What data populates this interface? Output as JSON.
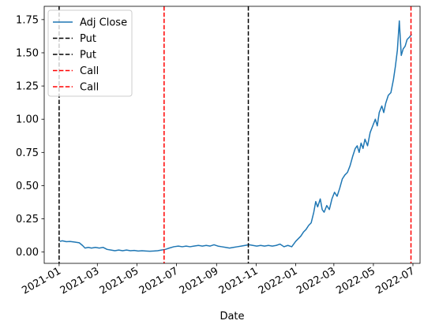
{
  "chart_data": {
    "type": "line",
    "title": "",
    "xlabel": "Date",
    "ylabel": "",
    "xlim": [
      "2020-12-09",
      "2022-07-12"
    ],
    "ylim": [
      -0.085,
      1.85
    ],
    "grid": false,
    "legend_position": "top-left",
    "x_ticks": [
      {
        "date": "2021-01-01",
        "label": "2021-01"
      },
      {
        "date": "2021-03-01",
        "label": "2021-03"
      },
      {
        "date": "2021-05-01",
        "label": "2021-05"
      },
      {
        "date": "2021-07-01",
        "label": "2021-07"
      },
      {
        "date": "2021-09-01",
        "label": "2021-09"
      },
      {
        "date": "2021-11-01",
        "label": "2021-11"
      },
      {
        "date": "2022-01-01",
        "label": "2022-01"
      },
      {
        "date": "2022-03-01",
        "label": "2022-03"
      },
      {
        "date": "2022-05-01",
        "label": "2022-05"
      },
      {
        "date": "2022-07-01",
        "label": "2022-07"
      }
    ],
    "y_ticks": [
      {
        "value": 0.0,
        "label": "0.00"
      },
      {
        "value": 0.25,
        "label": "0.25"
      },
      {
        "value": 0.5,
        "label": "0.50"
      },
      {
        "value": 0.75,
        "label": "0.75"
      },
      {
        "value": 1.0,
        "label": "1.00"
      },
      {
        "value": 1.25,
        "label": "1.25"
      },
      {
        "value": 1.5,
        "label": "1.50"
      },
      {
        "value": 1.75,
        "label": "1.75"
      }
    ],
    "series": [
      {
        "name": "Adj Close",
        "color": "#1f77b4",
        "points": [
          [
            "2021-01-02",
            0.08
          ],
          [
            "2021-01-06",
            0.085
          ],
          [
            "2021-01-12",
            0.078
          ],
          [
            "2021-01-18",
            0.08
          ],
          [
            "2021-01-25",
            0.075
          ],
          [
            "2021-02-01",
            0.07
          ],
          [
            "2021-02-06",
            0.05
          ],
          [
            "2021-02-10",
            0.03
          ],
          [
            "2021-02-15",
            0.035
          ],
          [
            "2021-02-20",
            0.03
          ],
          [
            "2021-02-26",
            0.035
          ],
          [
            "2021-03-04",
            0.03
          ],
          [
            "2021-03-10",
            0.035
          ],
          [
            "2021-03-16",
            0.02
          ],
          [
            "2021-03-22",
            0.015
          ],
          [
            "2021-03-28",
            0.01
          ],
          [
            "2021-04-03",
            0.015
          ],
          [
            "2021-04-09",
            0.01
          ],
          [
            "2021-04-15",
            0.015
          ],
          [
            "2021-04-21",
            0.01
          ],
          [
            "2021-04-27",
            0.012
          ],
          [
            "2021-05-03",
            0.008
          ],
          [
            "2021-05-09",
            0.01
          ],
          [
            "2021-05-15",
            0.008
          ],
          [
            "2021-05-21",
            0.006
          ],
          [
            "2021-05-27",
            0.008
          ],
          [
            "2021-06-02",
            0.01
          ],
          [
            "2021-06-08",
            0.015
          ],
          [
            "2021-06-14",
            0.02
          ],
          [
            "2021-06-20",
            0.03
          ],
          [
            "2021-06-27",
            0.04
          ],
          [
            "2021-07-04",
            0.045
          ],
          [
            "2021-07-10",
            0.04
          ],
          [
            "2021-07-16",
            0.045
          ],
          [
            "2021-07-22",
            0.04
          ],
          [
            "2021-07-28",
            0.045
          ],
          [
            "2021-08-04",
            0.05
          ],
          [
            "2021-08-10",
            0.045
          ],
          [
            "2021-08-16",
            0.05
          ],
          [
            "2021-08-22",
            0.045
          ],
          [
            "2021-08-28",
            0.055
          ],
          [
            "2021-09-03",
            0.045
          ],
          [
            "2021-09-09",
            0.04
          ],
          [
            "2021-09-15",
            0.035
          ],
          [
            "2021-09-21",
            0.03
          ],
          [
            "2021-09-27",
            0.035
          ],
          [
            "2021-10-03",
            0.04
          ],
          [
            "2021-10-09",
            0.045
          ],
          [
            "2021-10-15",
            0.05
          ],
          [
            "2021-10-21",
            0.055
          ],
          [
            "2021-10-27",
            0.05
          ],
          [
            "2021-11-02",
            0.045
          ],
          [
            "2021-11-08",
            0.05
          ],
          [
            "2021-11-14",
            0.045
          ],
          [
            "2021-11-20",
            0.05
          ],
          [
            "2021-11-26",
            0.045
          ],
          [
            "2021-12-02",
            0.05
          ],
          [
            "2021-12-08",
            0.06
          ],
          [
            "2021-12-14",
            0.04
          ],
          [
            "2021-12-20",
            0.05
          ],
          [
            "2021-12-26",
            0.04
          ],
          [
            "2022-01-01",
            0.08
          ],
          [
            "2022-01-05",
            0.1
          ],
          [
            "2022-01-09",
            0.12
          ],
          [
            "2022-01-13",
            0.15
          ],
          [
            "2022-01-17",
            0.17
          ],
          [
            "2022-01-21",
            0.2
          ],
          [
            "2022-01-25",
            0.22
          ],
          [
            "2022-01-29",
            0.3
          ],
          [
            "2022-02-01",
            0.38
          ],
          [
            "2022-02-04",
            0.34
          ],
          [
            "2022-02-08",
            0.4
          ],
          [
            "2022-02-11",
            0.32
          ],
          [
            "2022-02-14",
            0.3
          ],
          [
            "2022-02-18",
            0.35
          ],
          [
            "2022-02-22",
            0.32
          ],
          [
            "2022-02-26",
            0.4
          ],
          [
            "2022-03-02",
            0.45
          ],
          [
            "2022-03-06",
            0.42
          ],
          [
            "2022-03-10",
            0.48
          ],
          [
            "2022-03-14",
            0.55
          ],
          [
            "2022-03-18",
            0.58
          ],
          [
            "2022-03-22",
            0.6
          ],
          [
            "2022-03-26",
            0.65
          ],
          [
            "2022-03-30",
            0.72
          ],
          [
            "2022-04-03",
            0.78
          ],
          [
            "2022-04-06",
            0.8
          ],
          [
            "2022-04-09",
            0.75
          ],
          [
            "2022-04-12",
            0.82
          ],
          [
            "2022-04-15",
            0.78
          ],
          [
            "2022-04-18",
            0.85
          ],
          [
            "2022-04-22",
            0.8
          ],
          [
            "2022-04-26",
            0.9
          ],
          [
            "2022-04-30",
            0.95
          ],
          [
            "2022-05-04",
            1.0
          ],
          [
            "2022-05-07",
            0.95
          ],
          [
            "2022-05-10",
            1.05
          ],
          [
            "2022-05-14",
            1.1
          ],
          [
            "2022-05-17",
            1.05
          ],
          [
            "2022-05-20",
            1.12
          ],
          [
            "2022-05-24",
            1.18
          ],
          [
            "2022-05-28",
            1.2
          ],
          [
            "2022-06-01",
            1.3
          ],
          [
            "2022-06-04",
            1.4
          ],
          [
            "2022-06-07",
            1.52
          ],
          [
            "2022-06-10",
            1.74
          ],
          [
            "2022-06-13",
            1.48
          ],
          [
            "2022-06-16",
            1.53
          ],
          [
            "2022-06-19",
            1.55
          ],
          [
            "2022-06-22",
            1.6
          ],
          [
            "2022-06-26",
            1.62
          ],
          [
            "2022-06-29",
            1.64
          ]
        ]
      }
    ],
    "vertical_lines": [
      {
        "name": "Put",
        "date": "2021-01-01",
        "color": "#000000",
        "style": "dashed"
      },
      {
        "name": "Put",
        "date": "2021-10-20",
        "color": "#000000",
        "style": "dashed"
      },
      {
        "name": "Call",
        "date": "2021-06-12",
        "color": "#ff0000",
        "style": "dashed"
      },
      {
        "name": "Call",
        "date": "2022-06-28",
        "color": "#ff0000",
        "style": "dashed"
      }
    ],
    "legend": [
      {
        "label": "Adj Close",
        "color": "#1f77b4",
        "style": "solid"
      },
      {
        "label": "Put",
        "color": "#000000",
        "style": "dashed"
      },
      {
        "label": "Put",
        "color": "#000000",
        "style": "dashed"
      },
      {
        "label": "Call",
        "color": "#ff0000",
        "style": "dashed"
      },
      {
        "label": "Call",
        "color": "#ff0000",
        "style": "dashed"
      }
    ]
  }
}
